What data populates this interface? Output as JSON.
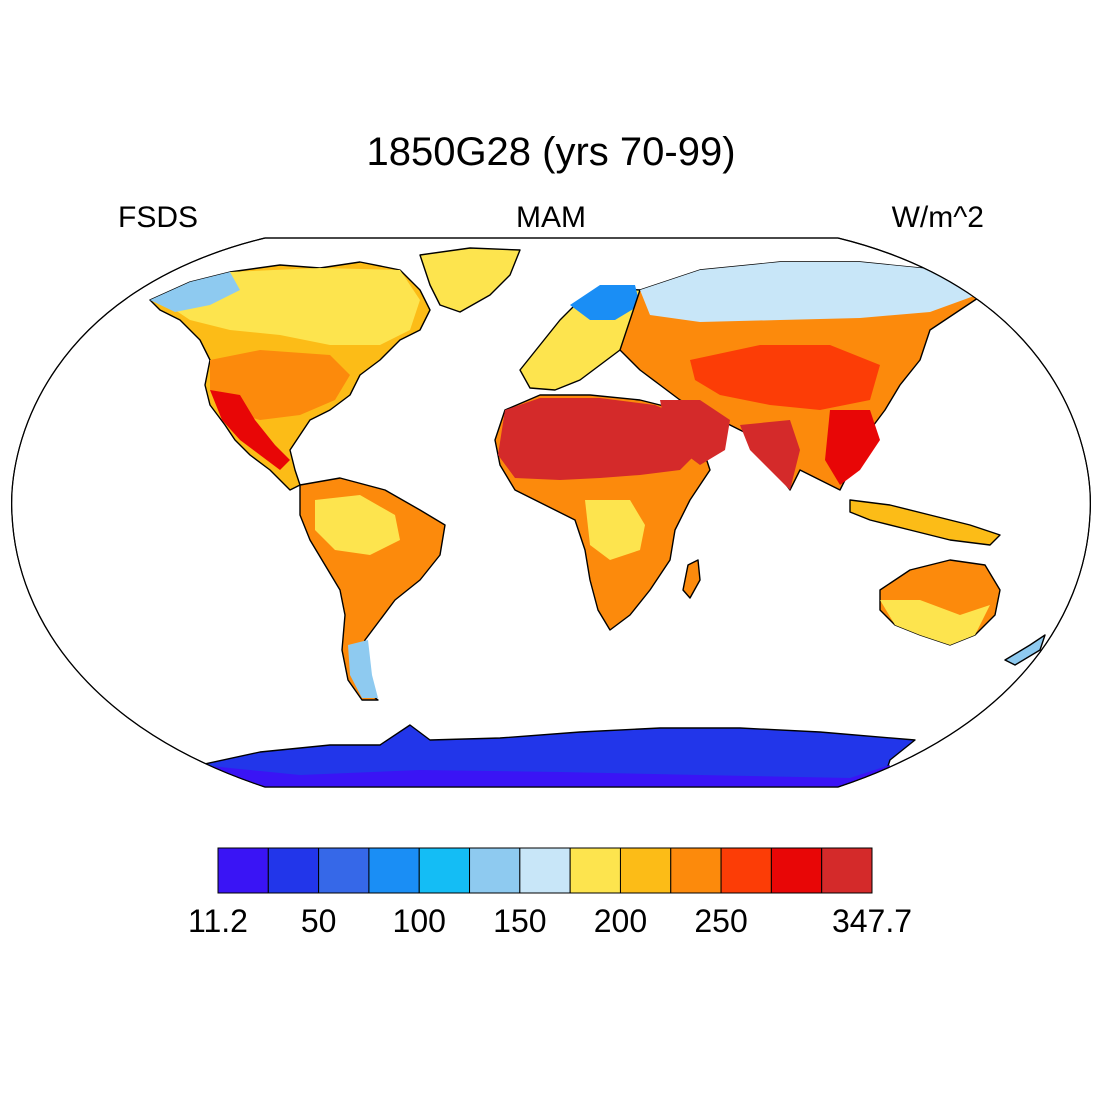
{
  "title": "1850G28 (yrs 70-99)",
  "left_label": "FSDS",
  "center_label": "MAM",
  "right_label": "W/m^2",
  "colorbar": {
    "colors": [
      "#3a14f5",
      "#2236ea",
      "#3668e8",
      "#1a8ef5",
      "#14bdf5",
      "#8ecaf0",
      "#c8e6f8",
      "#fde44e",
      "#fcbc17",
      "#fc8a0c",
      "#fc3d06",
      "#e80606",
      "#d42a2a"
    ],
    "labels": [
      "11.2",
      "50",
      "100",
      "150",
      "200",
      "250",
      "347.7"
    ]
  },
  "chart_data": {
    "type": "heatmap",
    "title": "1850G28 (yrs 70-99)",
    "variable": "FSDS",
    "season": "MAM",
    "units": "W/m^2",
    "projection": "Robinson",
    "range": [
      11.2,
      347.7
    ],
    "colorbar_ticks": [
      11.2,
      50,
      100,
      150,
      200,
      250,
      347.7
    ],
    "levels": 13,
    "regions": [
      {
        "region": "Sahara / Arabia",
        "value_class": 13
      },
      {
        "region": "India / South Asia",
        "value_class": 12
      },
      {
        "region": "Mexico / Central America",
        "value_class": 12
      },
      {
        "region": "Tibet / China",
        "value_class": 11
      },
      {
        "region": "Southern USA",
        "value_class": 10
      },
      {
        "region": "Sahel / East Africa",
        "value_class": 10
      },
      {
        "region": "Central Asia",
        "value_class": 10
      },
      {
        "region": "Australia interior",
        "value_class": 10
      },
      {
        "region": "South America / Brazil",
        "value_class": 9
      },
      {
        "region": "Southern Africa",
        "value_class": 9
      },
      {
        "region": "Central Africa",
        "value_class": 8
      },
      {
        "region": "Canada / Northern USA",
        "value_class": 8
      },
      {
        "region": "Siberia",
        "value_class": 7
      },
      {
        "region": "Alaska",
        "value_class": 6
      },
      {
        "region": "Scandinavia",
        "value_class": 5
      },
      {
        "region": "Greenland",
        "value_class": 8
      },
      {
        "region": "Antarctica coast",
        "value_class": 2
      },
      {
        "region": "Antarctica interior",
        "value_class": 1
      }
    ]
  }
}
